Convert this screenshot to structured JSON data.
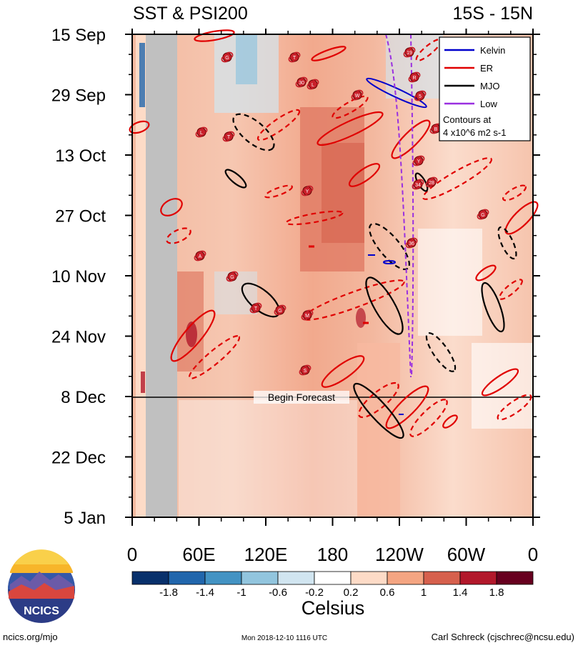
{
  "title_left": "SST & PSI200",
  "title_right": "15S - 15N",
  "chart_data": {
    "type": "heatmap",
    "title": "SST & PSI200",
    "subtitle": "15S - 15N",
    "x_axis": {
      "ticks": [
        "0",
        "60E",
        "120E",
        "180",
        "120W",
        "60W",
        "0"
      ],
      "range_deg": [
        0,
        360
      ]
    },
    "y_axis": {
      "ticks": [
        "15 Sep",
        "29 Sep",
        "13 Oct",
        "27 Oct",
        "10 Nov",
        "24 Nov",
        "8 Dec",
        "22 Dec",
        "5 Jan"
      ],
      "range": [
        "15 Sep",
        "5 Jan"
      ]
    },
    "forecast_start": "8 Dec",
    "forecast_label": "Begin Forecast",
    "colorbar": {
      "unit": "Celsius",
      "labels": [
        "-1.8",
        "-1.4",
        "-1",
        "-0.6",
        "-0.2",
        "0.2",
        "0.6",
        "1",
        "1.4",
        "1.8"
      ],
      "colors": [
        "#08306b",
        "#2166ac",
        "#4393c3",
        "#92c5de",
        "#d1e5f0",
        "#ffffff",
        "#fddbc7",
        "#f4a582",
        "#d6604d",
        "#b2182b",
        "#67001f"
      ]
    },
    "legend": {
      "items": [
        {
          "name": "Kelvin",
          "color": "#0000cc"
        },
        {
          "name": "ER",
          "color": "#e00000"
        },
        {
          "name": "MJO",
          "color": "#000000"
        },
        {
          "name": "Low",
          "color": "#9a30e0"
        }
      ],
      "note_line1": "Contours at",
      "note_line2": "4 x10^6 m2 s-1"
    }
  },
  "footer": {
    "logo_text": "NCICS",
    "url": "ncics.org/mjo",
    "timestamp": "Mon 2018-12-10 1116 UTC",
    "author": "Carl Schreck (cjschrec@ncsu.edu)"
  }
}
